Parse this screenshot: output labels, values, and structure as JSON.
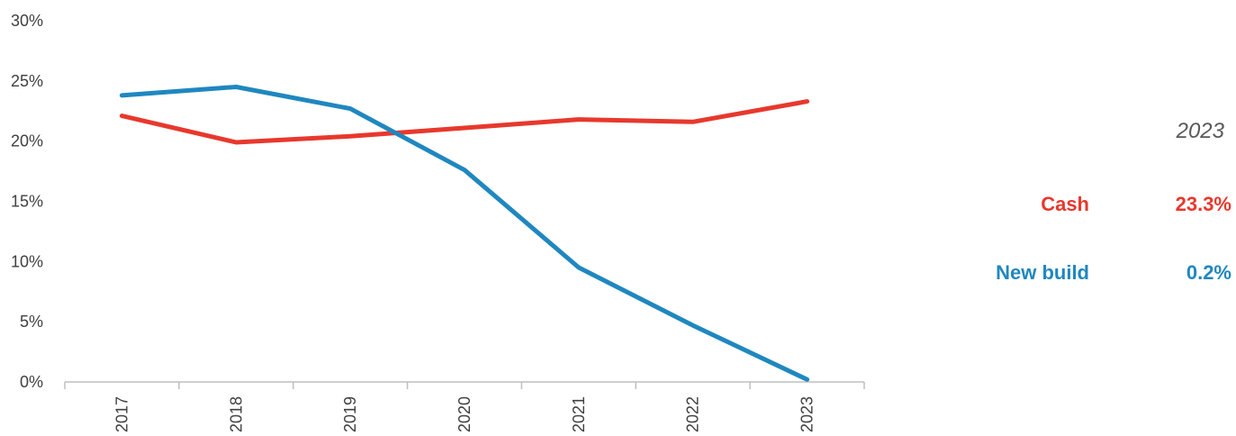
{
  "chart_data": {
    "type": "line",
    "categories": [
      "2017",
      "2018",
      "2019",
      "2020",
      "2021",
      "2022",
      "2023"
    ],
    "series": [
      {
        "name": "Cash",
        "color": "#E8382D",
        "values": [
          22.1,
          19.9,
          20.4,
          21.1,
          21.8,
          21.6,
          23.3
        ]
      },
      {
        "name": "New build",
        "color": "#1F87C0",
        "values": [
          23.8,
          24.5,
          22.7,
          17.6,
          9.5,
          4.7,
          0.2
        ]
      }
    ],
    "ylim": [
      0,
      30
    ],
    "yticks": [
      "0%",
      "5%",
      "10%",
      "15%",
      "20%",
      "25%",
      "30%"
    ],
    "ytick_values": [
      0,
      5,
      10,
      15,
      20,
      25,
      30
    ],
    "grid": false,
    "legend_placement": "right"
  },
  "legend": {
    "year": "2023",
    "rows": [
      {
        "label": "Cash",
        "value": "23.3%",
        "color": "#E8382D"
      },
      {
        "label": "New build",
        "value": "0.2%",
        "color": "#1F87C0"
      }
    ]
  }
}
